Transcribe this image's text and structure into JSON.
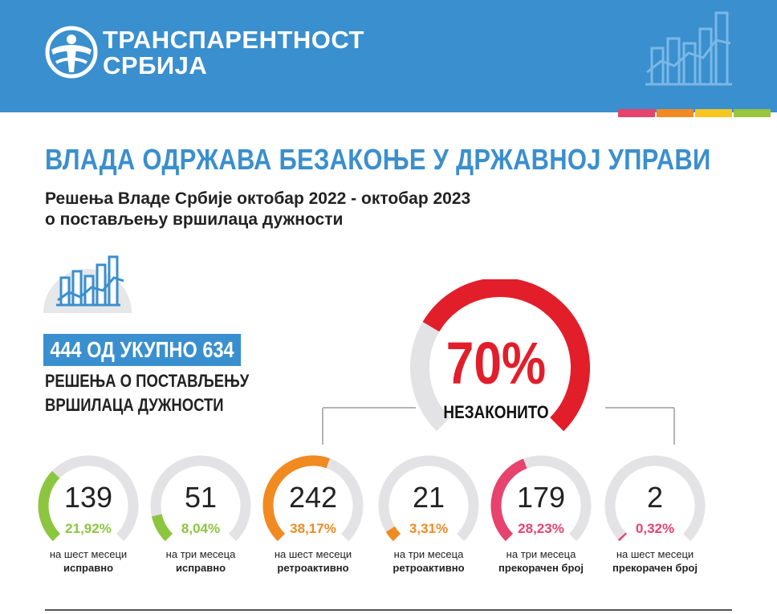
{
  "header": {
    "org_line_1": "ТРАНСПАРЕНТНОСТ",
    "org_line_2": "СРБИЈА",
    "logo_icon": "globe-person-logo",
    "background": "#3a8fce",
    "chart_icon": "bar-line-chart-icon",
    "strip_colors": [
      "#e8426e",
      "#f18a21",
      "#f7c61e",
      "#9ac53d"
    ]
  },
  "title": {
    "main": "ВЛАДА ОДРЖАВА БЕЗАКОЊЕ У ДРЖАВНОЈ УПРАВИ",
    "subtitle_1": "Решења Владе Србије октобар 2022 - октобар 2023",
    "subtitle_2": "о постављењу вршилаца дужности"
  },
  "summary": {
    "icon": "chart-on-globe-icon",
    "total": "444 ОД УКУПНО 634",
    "caption_1": "РЕШЕЊА О ПОСТАВЉЕЊУ",
    "caption_2": "ВРШИЛАЦА ДУЖНОСТИ"
  },
  "main_gauge": {
    "percent": "70%",
    "label": "НЕЗАКОНИТО",
    "value": 0.7,
    "color": "#e21e2a",
    "track_color": "#e3e3e5"
  },
  "gauges": [
    {
      "count": "139",
      "percent": "21,92%",
      "line1": "на шест месеци",
      "line2": "исправно",
      "fraction": 0.2192,
      "color": "#8cc63f"
    },
    {
      "count": "51",
      "percent": "8,04%",
      "line1": "на три месеца",
      "line2": "исправно",
      "fraction": 0.0804,
      "color": "#8cc63f"
    },
    {
      "count": "242",
      "percent": "38,17%",
      "line1": "на шест месеци",
      "line2": "ретроактивно",
      "fraction": 0.3817,
      "color": "#f18a21"
    },
    {
      "count": "21",
      "percent": "3,31%",
      "line1": "на три месеца",
      "line2": "ретроактивно",
      "fraction": 0.0331,
      "color": "#f18a21"
    },
    {
      "count": "179",
      "percent": "28,23%",
      "line1": "на три месеца",
      "line2": "прекорачен број",
      "fraction": 0.2823,
      "color": "#e8426e"
    },
    {
      "count": "2",
      "percent": "0,32%",
      "line1": "на шест месеци",
      "line2": "прекорачен број",
      "fraction": 0.0032,
      "color": "#e8426e"
    }
  ]
}
